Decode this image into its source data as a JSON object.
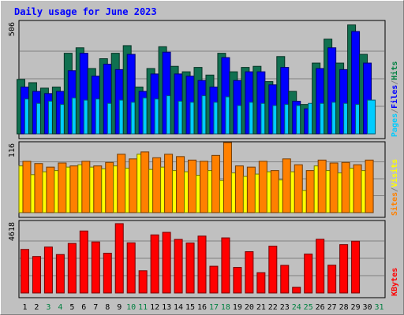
{
  "chart_data": {
    "type": "bar",
    "title": "Daily usage for June 2023",
    "categories": [
      "1",
      "2",
      "3",
      "4",
      "5",
      "6",
      "7",
      "8",
      "9",
      "10",
      "11",
      "12",
      "13",
      "14",
      "15",
      "16",
      "17",
      "18",
      "19",
      "20",
      "21",
      "22",
      "23",
      "24",
      "25",
      "26",
      "27",
      "28",
      "29",
      "30",
      "31"
    ],
    "weekend_categories": [
      "3",
      "4",
      "10",
      "11",
      "17",
      "18",
      "24",
      "25",
      "31"
    ],
    "panels": [
      {
        "id": "hits-files-pages",
        "max_label": "506",
        "ymax": 506,
        "legend": [
          {
            "label": "Pages",
            "color": "#00ccff"
          },
          {
            "label": "/",
            "color": "#808080"
          },
          {
            "label": "Files",
            "color": "#0000ff"
          },
          {
            "label": "/",
            "color": "#808080"
          },
          {
            "label": "Hits",
            "color": "#008040"
          }
        ],
        "series": [
          {
            "name": "Hits",
            "color": "#107050",
            "values": [
              250,
              235,
              210,
              215,
              370,
              395,
              300,
              345,
              370,
              405,
              215,
              300,
              400,
              310,
              285,
              305,
              270,
              370,
              285,
              305,
              310,
              240,
              355,
              195,
              135,
              325,
              435,
              325,
              500,
              365,
              null
            ]
          },
          {
            "name": "Files",
            "color": "#0000ff",
            "values": [
              215,
              195,
              185,
              195,
              290,
              370,
              265,
              320,
              295,
              365,
              195,
              275,
              375,
              275,
              265,
              245,
              215,
              350,
              245,
              285,
              285,
              225,
              305,
              150,
              115,
              300,
              395,
              295,
              470,
              325,
              null
            ]
          },
          {
            "name": "Pages",
            "color": "#00ccff",
            "values": [
              160,
              140,
              150,
              135,
              165,
              155,
              160,
              140,
              155,
              145,
              165,
              160,
              175,
              150,
              145,
              175,
              145,
              170,
              130,
              145,
              140,
              130,
              135,
              130,
              140,
              140,
              145,
              140,
              135,
              155,
              null
            ]
          }
        ]
      },
      {
        "id": "visits-sites",
        "max_label": "116",
        "ymax": 116,
        "legend": [
          {
            "label": "Sites",
            "color": "#ff8000"
          },
          {
            "label": "/",
            "color": "#808080"
          },
          {
            "label": "Visits",
            "color": "#ffff00"
          }
        ],
        "series": [
          {
            "name": "Visits",
            "color": "#ffff00",
            "values": [
              80,
              65,
              70,
              72,
              78,
              82,
              78,
              75,
              80,
              76,
              100,
              74,
              78,
              72,
              70,
              64,
              72,
              55,
              68,
              62,
              66,
              70,
              56,
              70,
              38,
              80,
              72,
              68,
              76,
              72,
              null
            ]
          },
          {
            "name": "Sites",
            "color": "#ff8000",
            "values": [
              88,
              84,
              78,
              85,
              80,
              88,
              80,
              86,
              100,
              92,
              104,
              94,
              100,
              96,
              90,
              88,
              98,
              120,
              80,
              78,
              88,
              72,
              92,
              82,
              72,
              90,
              85,
              86,
              82,
              90,
              null
            ]
          }
        ]
      },
      {
        "id": "kbytes",
        "max_label": "4618",
        "ymax": 4618,
        "legend": [
          {
            "label": "KBytes",
            "color": "#ff0000"
          }
        ],
        "series": [
          {
            "name": "KBytes",
            "color": "#ff0000",
            "values": [
              2900,
              2430,
              3060,
              2560,
              3300,
              4130,
              3400,
              2650,
              4620,
              3340,
              1480,
              3870,
              4040,
              3570,
              3330,
              3790,
              1780,
              3670,
              1700,
              2750,
              1350,
              3120,
              1840,
              380,
              2590,
              3580,
              1850,
              3220,
              3450,
              null,
              null
            ]
          }
        ]
      }
    ]
  }
}
